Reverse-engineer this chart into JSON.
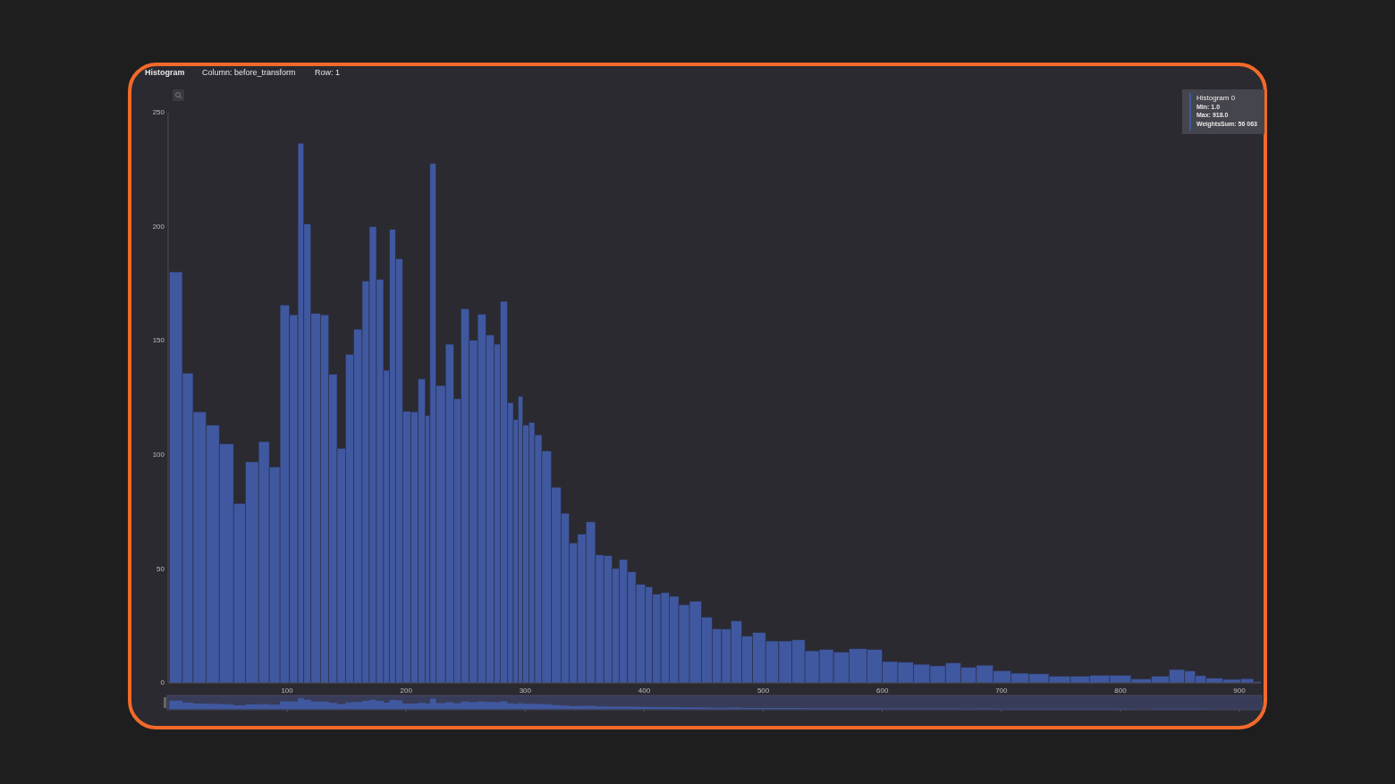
{
  "chart_data": {
    "type": "histogram",
    "title": "Histogram",
    "annotations": [
      "Column: before_transform",
      "Row: 1",
      "Min: 1.0",
      "Max: 918.0",
      "WeightsSum: 56 063"
    ],
    "bins": [
      1,
      12,
      21,
      32,
      43,
      55,
      65,
      76,
      85,
      94,
      102,
      109,
      114,
      120,
      128,
      135,
      142,
      149,
      156,
      163,
      169,
      175,
      181,
      186,
      191,
      197,
      204,
      210,
      216,
      220,
      225,
      233,
      240,
      246,
      253,
      260,
      267,
      274,
      279,
      285,
      290,
      294,
      298,
      303,
      308,
      314,
      322,
      330,
      337,
      344,
      351,
      359,
      366,
      373,
      379,
      386,
      393,
      401,
      407,
      414,
      421,
      429,
      438,
      448,
      457,
      465,
      473,
      482,
      491,
      502,
      513,
      524,
      535,
      547,
      559,
      572,
      587,
      600,
      613,
      626,
      640,
      653,
      666,
      679,
      693,
      708,
      723,
      740,
      758,
      774,
      791,
      809,
      826,
      841,
      854,
      863,
      872,
      886,
      901,
      912,
      918
    ],
    "series": [
      {
        "name": "Histogram 0",
        "color": "#4058a0",
        "values": [
          180.2,
          135.8,
          118.8,
          113.0,
          104.8,
          78.7,
          96.9,
          105.8,
          94.7,
          165.7,
          161.4,
          236.6,
          201.2,
          162.0,
          161.4,
          135.3,
          102.8,
          144.1,
          155.1,
          176.2,
          200,
          176.9,
          137.1,
          198.8,
          186.0,
          119.1,
          118.8,
          133.3,
          117.2,
          227.7,
          130.4,
          148.5,
          124.6,
          164.0,
          150.2,
          161.7,
          152.5,
          148.5,
          167.3,
          122.9,
          115.5,
          125.7,
          113.0,
          114.2,
          108.7,
          101.7,
          85.8,
          74.4,
          61.4,
          65.2,
          70.6,
          56.1,
          55.8,
          50.2,
          54.1,
          48.7,
          43.2,
          42.2,
          38.9,
          39.6,
          38.0,
          34.3,
          35.8,
          28.9,
          23.8,
          23.6,
          27.2,
          20.5,
          22.1,
          18.4,
          18.4,
          18.9,
          14.1,
          14.7,
          13.6,
          15.0,
          14.7,
          9.4,
          9.1,
          8.2,
          7.5,
          8.8,
          6.9,
          7.8,
          5.4,
          4.3,
          4.0,
          3.0,
          3.0,
          3.4,
          3.4,
          1.8,
          3.0,
          5.9,
          5.3,
          3.2,
          2.1,
          1.6,
          1.9,
          0.6
        ]
      }
    ],
    "xlim": [
      0,
      918
    ],
    "xticks": [
      100,
      200,
      300,
      400,
      500,
      600,
      700,
      800,
      900
    ],
    "ylim": [
      0,
      250
    ],
    "yticks": [
      0,
      50,
      100,
      150,
      200,
      250
    ],
    "legend": "top right"
  }
}
